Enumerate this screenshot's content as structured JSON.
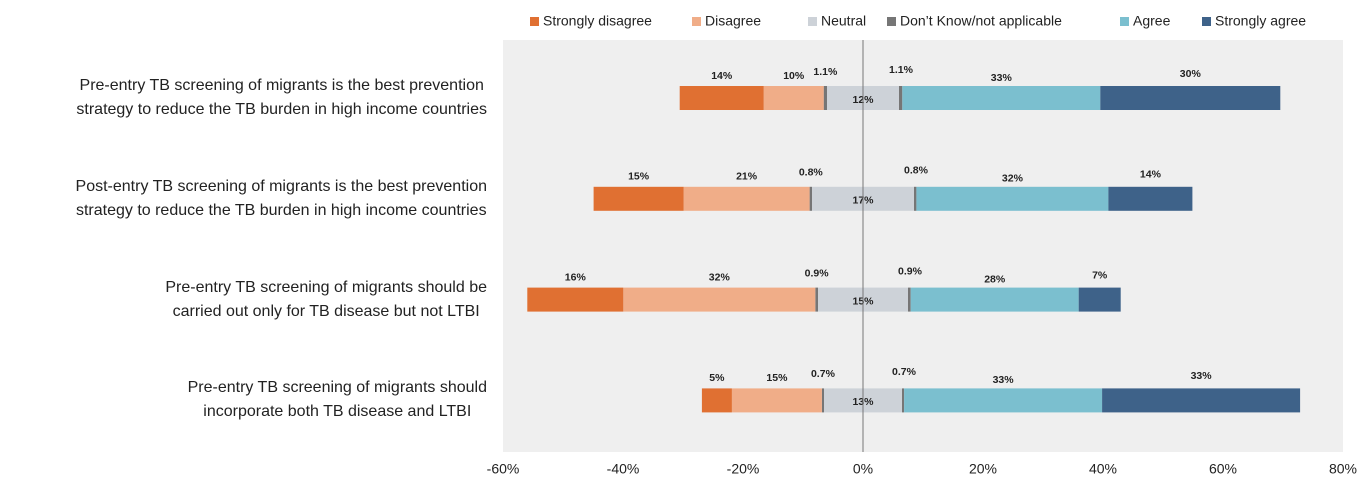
{
  "chart_data": {
    "type": "diverging-bar",
    "categories": [
      "Pre-entry TB screening of migrants is the best prevention\nstrategy to reduce the TB burden in high income countries",
      "Post-entry TB screening of migrants is the best prevention\nstrategy to reduce the TB burden in high income countries",
      "Pre-entry TB screening of migrants should be\ncarried out only for TB disease but not LTBI",
      "Pre-entry TB screening of migrants should\nincorporate both TB disease and LTBI"
    ],
    "series": [
      {
        "name": "Strongly disagree",
        "color": "#e07032",
        "values": [
          14,
          15,
          16,
          5
        ],
        "value_labels": [
          "14%",
          "15%",
          "16%",
          "5%"
        ]
      },
      {
        "name": "Disagree",
        "color": "#f0ad88",
        "values": [
          10,
          21,
          32,
          15
        ],
        "value_labels": [
          "10%",
          "21%",
          "32%",
          "15%"
        ]
      },
      {
        "name": "Neutral",
        "color": "#cdd2d8",
        "values": [
          12,
          17,
          15,
          13
        ],
        "value_labels": [
          "12%",
          "17%",
          "15%",
          "13%"
        ]
      },
      {
        "name": "Don’t Know/not applicable",
        "color": "#767676",
        "values": [
          1.1,
          0.8,
          0.9,
          0.7
        ],
        "value_labels": [
          "1.1%",
          "0.8%",
          "0.9%",
          "0.7%"
        ]
      },
      {
        "name": "Agree",
        "color": "#7bbfcf",
        "values": [
          33,
          32,
          28,
          33
        ],
        "value_labels": [
          "33%",
          "32%",
          "28%",
          "33%"
        ]
      },
      {
        "name": "Strongly agree",
        "color": "#3e6289",
        "values": [
          30,
          14,
          7,
          33
        ],
        "value_labels": [
          "30%",
          "14%",
          "7%",
          "33%"
        ]
      }
    ],
    "xlim": [
      -60,
      80
    ],
    "xticks": [
      {
        "value": -60,
        "label": "-60%"
      },
      {
        "value": -40,
        "label": "-40%"
      },
      {
        "value": -20,
        "label": "-20%"
      },
      {
        "value": 0,
        "label": "0%"
      },
      {
        "value": 20,
        "label": "20%"
      },
      {
        "value": 40,
        "label": "40%"
      },
      {
        "value": 60,
        "label": "60%"
      },
      {
        "value": 80,
        "label": "80%"
      }
    ]
  }
}
